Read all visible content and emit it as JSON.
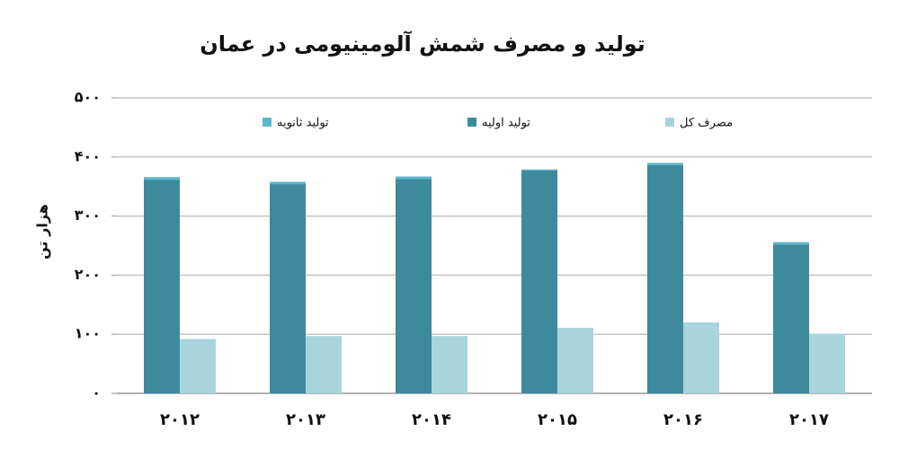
{
  "chart_data": {
    "type": "bar",
    "title": "تولید و مصرف شمش آلومینیومی در عمان",
    "y_label": "هزار تن",
    "categories": [
      "۲۰۱۲",
      "۲۰۱۳",
      "۲۰۱۴",
      "۲۰۱۵",
      "۲۰۱۶",
      "۲۰۱۷"
    ],
    "series": [
      {
        "name": "تولید اولیه",
        "color": "#3d8a9d",
        "values": [
          361,
          354,
          363,
          377,
          386,
          252
        ]
      },
      {
        "name": "تولید ثانویه",
        "color": "#5fb7cb",
        "values": [
          5,
          4,
          4,
          2,
          4,
          4
        ]
      },
      {
        "name": "مصرف کل",
        "color": "#a9d4dd",
        "values": [
          92,
          97,
          97,
          111,
          120,
          101
        ]
      }
    ],
    "stacked": true,
    "ylim": [
      0,
      500
    ],
    "yticks": [
      {
        "value": 0,
        "label": "۰"
      },
      {
        "value": 100,
        "label": "۱۰۰"
      },
      {
        "value": 200,
        "label": "۲۰۰"
      },
      {
        "value": 300,
        "label": "۳۰۰"
      },
      {
        "value": 400,
        "label": "۴۰۰"
      },
      {
        "value": 500,
        "label": "۵۰۰"
      }
    ],
    "grid": true
  }
}
